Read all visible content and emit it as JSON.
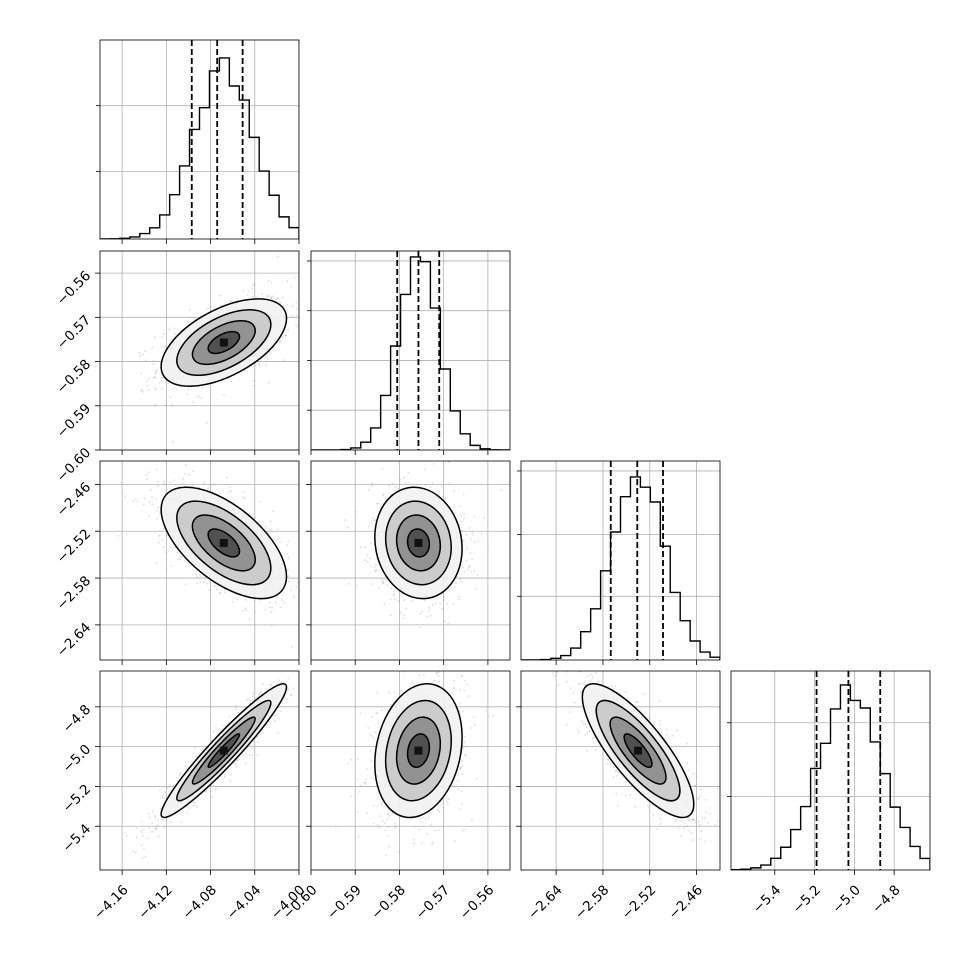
{
  "chart_data": {
    "type": "corner",
    "parameters": [
      {
        "range": [
          -4.18,
          -4.0
        ],
        "ticks": [
          -4.16,
          -4.12,
          -4.08,
          -4.04,
          -4.0
        ],
        "tick_labels": [
          "−4.16",
          "−4.12",
          "−4.08",
          "−4.04",
          "−4.00"
        ],
        "mean": -4.068,
        "sd": 0.027,
        "quantiles": [
          -4.097,
          -4.074,
          -4.051
        ],
        "hist_peak_frac": 0.91,
        "hist_grid_fracs": [
          0.34,
          0.67
        ]
      },
      {
        "range": [
          -0.6,
          -0.555
        ],
        "ticks": [
          -0.6,
          -0.59,
          -0.58,
          -0.57,
          -0.56
        ],
        "tick_labels": [
          "−0.60",
          "−0.59",
          "−0.58",
          "−0.57",
          "−0.56"
        ],
        "mean": -0.5757,
        "sd": 0.0047,
        "quantiles": [
          -0.5805,
          -0.5757,
          -0.571
        ],
        "hist_peak_frac": 0.97,
        "hist_grid_fracs": [
          0.2,
          0.45,
          0.7,
          0.95
        ]
      },
      {
        "range": [
          -2.685,
          -2.43
        ],
        "ticks": [
          -2.64,
          -2.58,
          -2.52,
          -2.46
        ],
        "tick_labels": [
          "−2.64",
          "−2.58",
          "−2.52",
          "−2.46"
        ],
        "mean": -2.535,
        "sd": 0.034,
        "quantiles": [
          -2.57,
          -2.536,
          -2.503
        ],
        "hist_peak_frac": 0.92,
        "hist_grid_fracs": [
          0.32,
          0.63,
          0.95
        ]
      },
      {
        "range": [
          -5.62,
          -4.62
        ],
        "ticks": [
          -5.4,
          -5.2,
          -5.0,
          -4.8
        ],
        "tick_labels": [
          "−5.4",
          "−5.2",
          "−5.0",
          "−4.8"
        ],
        "mean": -5.02,
        "sd": 0.16,
        "quantiles": [
          -5.19,
          -5.03,
          -4.87
        ],
        "hist_peak_frac": 0.93,
        "hist_grid_fracs": [
          0.37,
          0.74
        ]
      }
    ],
    "correlations": [
      [
        1.0,
        0.55,
        -0.6,
        0.95
      ],
      [
        0.55,
        1.0,
        -0.1,
        0.2
      ],
      [
        -0.6,
        -0.1,
        1.0,
        -0.8
      ],
      [
        0.95,
        0.2,
        -0.8,
        1.0
      ]
    ],
    "contour_levels_sigma": [
      0.5,
      1.0,
      1.5,
      2.0
    ],
    "hist_bins": 20,
    "show_grid": true,
    "quantiles_shown": [
      0.16,
      0.5,
      0.84
    ]
  }
}
